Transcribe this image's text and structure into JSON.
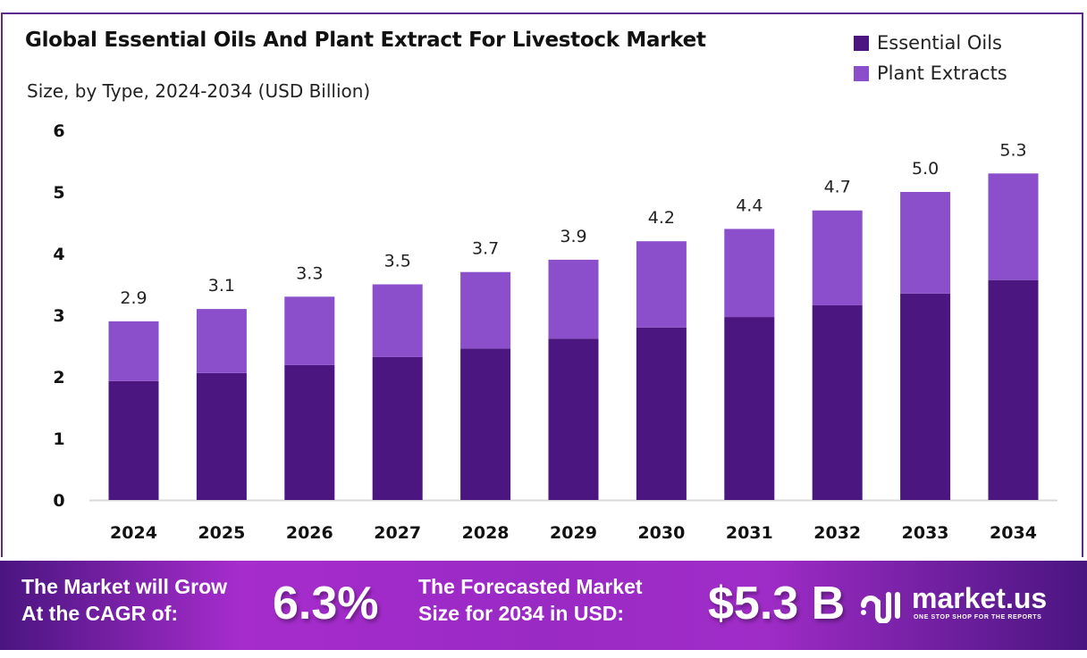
{
  "chart_data": {
    "type": "bar",
    "stacked": true,
    "title": "Global Essential Oils And Plant Extract For Livestock Market",
    "subtitle": "Size, by Type, 2024-2034 (USD Billion)",
    "categories": [
      "2024",
      "2025",
      "2026",
      "2027",
      "2028",
      "2029",
      "2030",
      "2031",
      "2032",
      "2033",
      "2034"
    ],
    "series": [
      {
        "name": "Essential Oils",
        "color": "#4b1680",
        "values": [
          1.93,
          2.06,
          2.19,
          2.32,
          2.46,
          2.62,
          2.8,
          2.97,
          3.16,
          3.35,
          3.57
        ]
      },
      {
        "name": "Plant Extracts",
        "color": "#8b4fcb",
        "values": [
          0.97,
          1.04,
          1.11,
          1.18,
          1.24,
          1.28,
          1.4,
          1.43,
          1.54,
          1.65,
          1.73
        ]
      }
    ],
    "totals_labels": [
      "2.9",
      "3.1",
      "3.3",
      "3.5",
      "3.7",
      "3.9",
      "4.2",
      "4.4",
      "4.7",
      "5.0",
      "5.3"
    ],
    "totals": [
      2.9,
      3.1,
      3.3,
      3.5,
      3.7,
      3.9,
      4.2,
      4.4,
      4.7,
      5.0,
      5.3
    ],
    "yticks": [
      "0",
      "1",
      "2",
      "3",
      "4",
      "5",
      "6"
    ],
    "ylim": [
      0,
      6
    ],
    "grid": false,
    "legend": "top-right",
    "xlabel": "",
    "ylabel": ""
  },
  "footer": {
    "cagr_text_1": "The Market will Grow",
    "cagr_text_2": "At the CAGR of:",
    "cagr_value": "6.3%",
    "forecast_text_1": "The Forecasted Market",
    "forecast_text_2": "Size for 2034 in USD:",
    "forecast_value": "$5.3 B",
    "logo_name": "market.us",
    "logo_tagline": "ONE STOP SHOP FOR THE REPORTS"
  }
}
